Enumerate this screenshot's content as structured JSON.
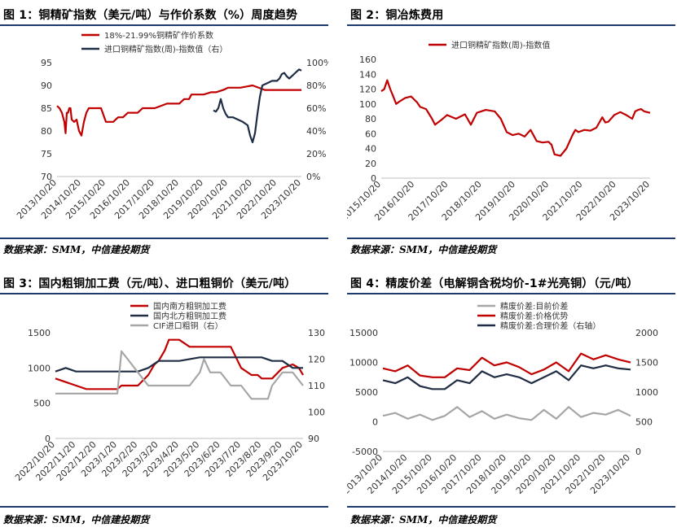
{
  "panels": [
    {
      "title": "图 1：铜精矿指数（美元/吨）与作价系数（%）周度趋势",
      "source": "数据来源：SMM，中信建投期货"
    },
    {
      "title": "图 2：铜冶炼费用",
      "source": "数据来源：SMM，中信建投期货"
    },
    {
      "title": "图 3：国内粗铜加工费（元/吨）、进口粗铜价（美元/吨）",
      "source": "数据来源：SMM，中信建投期货"
    },
    {
      "title": "图 4：精废价差（电解铜含税均价-1#光亮铜）（元/吨）",
      "source": "数据来源：SMM，中信建投期货"
    }
  ],
  "colors": {
    "red": "#c00000",
    "navy": "#1f2d44",
    "gray": "#a6a6a6",
    "rule": "#1f3a6e"
  },
  "chart_data": [
    {
      "type": "line",
      "title": "图 1：铜精矿指数（美元/吨）与作价系数（%）周度趋势",
      "x_labels": [
        "2013/10/20",
        "2014/10/20",
        "2015/10/20",
        "2016/10/20",
        "2017/10/20",
        "2018/10/20",
        "2019/10/20",
        "2020/10/20",
        "2021/10/20",
        "2022/10/20",
        "2023/10/20"
      ],
      "ylim": [
        70,
        95
      ],
      "yticks": [
        70,
        75,
        80,
        85,
        90,
        95
      ],
      "y2lim": [
        0,
        100
      ],
      "y2ticks": [
        "0%",
        "20%",
        "40%",
        "60%",
        "80%",
        "100%"
      ],
      "series": [
        {
          "name": "18%-21.99%铜精矿作价系数",
          "axis": "left",
          "color": "#c00000",
          "x": [
            0,
            0.1,
            0.2,
            0.3,
            0.35,
            0.4,
            0.45,
            0.5,
            0.55,
            0.6,
            0.7,
            0.8,
            0.9,
            1.0,
            1.1,
            1.2,
            1.3,
            1.5,
            1.8,
            2.0,
            2.3,
            2.5,
            2.7,
            2.9,
            3.0,
            3.1,
            3.3,
            3.5,
            4.0,
            4.5,
            5.0,
            5.2,
            5.4,
            5.5,
            5.7,
            6.0,
            6.3,
            6.5,
            6.8,
            7.0,
            7.5,
            8.0,
            8.5,
            9.0,
            9.5,
            10.0
          ],
          "values": [
            85.5,
            85,
            84,
            82,
            79.5,
            84,
            84,
            85,
            85,
            82.5,
            82,
            82.5,
            80,
            79,
            82,
            84,
            85,
            85,
            85,
            82,
            82,
            83,
            83,
            84,
            84,
            84,
            84,
            85,
            85,
            86,
            86,
            87,
            87,
            88,
            88,
            88,
            88.5,
            88.5,
            89,
            89.5,
            89.5,
            90,
            89,
            89,
            89,
            89
          ]
        },
        {
          "name": "进口铜精矿指数(周)-指数值（右）",
          "axis": "right",
          "color": "#1f2d44",
          "x": [
            6.4,
            6.5,
            6.6,
            6.7,
            6.8,
            6.9,
            7.0,
            7.2,
            7.4,
            7.6,
            7.8,
            7.9,
            8.0,
            8.1,
            8.2,
            8.3,
            8.4,
            8.6,
            8.8,
            9.0,
            9.1,
            9.2,
            9.3,
            9.4,
            9.5,
            9.6,
            9.7,
            9.8,
            9.9,
            10.0
          ],
          "values": [
            58,
            57,
            60,
            68,
            60,
            55,
            52,
            52,
            50,
            48,
            45,
            36,
            30,
            38,
            55,
            70,
            80,
            82,
            84,
            84,
            86,
            90,
            91,
            88,
            86,
            88,
            90,
            92,
            94,
            93
          ]
        }
      ]
    },
    {
      "type": "line",
      "title": "图 2：铜冶炼费用",
      "x_labels": [
        "2015/10/20",
        "2016/10/20",
        "2017/10/20",
        "2018/10/20",
        "2019/10/20",
        "2020/10/20",
        "2021/10/20",
        "2022/10/20",
        "2023/10/20"
      ],
      "ylim": [
        0,
        160
      ],
      "yticks": [
        0,
        20,
        40,
        60,
        80,
        100,
        120,
        140,
        160
      ],
      "series": [
        {
          "name": "进口铜精矿指数(周)-指数值",
          "color": "#c00000",
          "x": [
            0,
            0.1,
            0.2,
            0.3,
            0.4,
            0.5,
            0.6,
            0.8,
            1.0,
            1.2,
            1.3,
            1.5,
            1.7,
            1.8,
            2.0,
            2.2,
            2.5,
            2.8,
            3.0,
            3.2,
            3.5,
            3.8,
            4.0,
            4.2,
            4.4,
            4.6,
            4.8,
            5.0,
            5.2,
            5.4,
            5.6,
            5.7,
            5.8,
            6.0,
            6.2,
            6.4,
            6.5,
            6.6,
            6.8,
            7.0,
            7.2,
            7.4,
            7.5,
            7.6,
            7.8,
            8.0,
            8.2,
            8.4,
            8.5,
            8.6,
            8.7,
            8.8,
            9.0
          ],
          "values": [
            117,
            120,
            132,
            120,
            110,
            100,
            103,
            108,
            110,
            102,
            96,
            93,
            80,
            72,
            78,
            85,
            80,
            86,
            72,
            88,
            92,
            90,
            80,
            62,
            58,
            60,
            56,
            65,
            50,
            48,
            49,
            45,
            32,
            30,
            40,
            58,
            65,
            62,
            65,
            64,
            68,
            82,
            75,
            76,
            85,
            89,
            85,
            80,
            90,
            92,
            93,
            90,
            88
          ]
        }
      ]
    },
    {
      "type": "line",
      "title": "图 3：国内粗铜加工费（元/吨）、进口粗铜价（美元/吨）",
      "x_labels": [
        "2022/10/20",
        "2022/11/20",
        "2022/12/20",
        "2023/1/20",
        "2023/2/20",
        "2023/3/20",
        "2023/4/20",
        "2023/5/20",
        "2023/6/20",
        "2023/7/20",
        "2023/8/20",
        "2023/9/20",
        "2023/10/20"
      ],
      "ylim": [
        0,
        1500
      ],
      "yticks": [
        0,
        500,
        1000,
        1500
      ],
      "y2lim": [
        90,
        130
      ],
      "y2ticks": [
        90,
        100,
        110,
        120,
        130
      ],
      "series": [
        {
          "name": "国内南方粗铜加工费",
          "axis": "left",
          "color": "#c00000",
          "x": [
            0,
            0.5,
            1.0,
            1.5,
            2.0,
            2.5,
            3.0,
            3.2,
            3.5,
            4.0,
            4.5,
            4.8,
            5.0,
            5.3,
            5.5,
            6.0,
            6.5,
            7.0,
            7.3,
            7.5,
            8.0,
            8.5,
            9.0,
            9.5,
            9.8,
            10.0,
            10.5,
            11.0,
            11.5,
            11.8,
            12.0
          ],
          "values": [
            850,
            800,
            750,
            700,
            700,
            700,
            700,
            750,
            750,
            750,
            900,
            1050,
            1100,
            1250,
            1400,
            1400,
            1300,
            1300,
            1300,
            1300,
            1300,
            1300,
            1000,
            900,
            900,
            850,
            850,
            1000,
            1050,
            1000,
            900
          ]
        },
        {
          "name": "国内北方粗铜加工费",
          "axis": "left",
          "color": "#1f2d44",
          "x": [
            0,
            0.5,
            1.0,
            2.0,
            3.0,
            3.5,
            4.0,
            4.5,
            5.0,
            6.0,
            7.0,
            8.0,
            9.0,
            10.0,
            10.5,
            11.0,
            11.5,
            12.0
          ],
          "values": [
            950,
            1000,
            950,
            950,
            950,
            950,
            950,
            1000,
            1100,
            1100,
            1150,
            1150,
            1150,
            1150,
            1100,
            1100,
            1000,
            1000
          ]
        },
        {
          "name": "CIF进口粗铜（右）",
          "axis": "right",
          "color": "#a6a6a6",
          "x": [
            0,
            0.5,
            1.0,
            2.0,
            3.0,
            3.2,
            3.5,
            4.0,
            4.5,
            5.0,
            6.0,
            6.5,
            7.0,
            7.2,
            7.5,
            8.0,
            8.5,
            9.0,
            9.5,
            10.0,
            10.3,
            10.5,
            11.0,
            11.5,
            12.0
          ],
          "values": [
            107,
            107,
            107,
            107,
            107,
            123,
            120,
            115,
            110,
            110,
            110,
            110,
            115,
            120,
            115,
            115,
            110,
            110,
            105,
            105,
            105,
            110,
            115,
            115,
            110
          ]
        }
      ]
    },
    {
      "type": "line",
      "title": "图 4：精废价差（电解铜含税均价-1#光亮铜）（元/吨）",
      "x_labels": [
        "2013/10/20",
        "2014/10/20",
        "2015/10/20",
        "2016/10/20",
        "2017/10/20",
        "2018/10/20",
        "2019/10/20",
        "2020/10/20",
        "2021/10/20",
        "2022/10/20",
        "2023/10/20"
      ],
      "ylim": [
        -5000,
        15000
      ],
      "yticks": [
        -5000,
        0,
        5000,
        10000,
        15000
      ],
      "y2lim": [
        0,
        2000
      ],
      "y2ticks": [
        0,
        500,
        1000,
        1500,
        2000
      ],
      "series": [
        {
          "name": "精废价差:目前价差",
          "axis": "left",
          "color": "#a6a6a6",
          "x": [
            0,
            0.5,
            1,
            1.5,
            2,
            2.5,
            3,
            3.5,
            4,
            4.5,
            5,
            5.5,
            6,
            6.5,
            7,
            7.5,
            8,
            8.5,
            9,
            9.5,
            10
          ],
          "values": [
            1000,
            1500,
            500,
            1200,
            300,
            1000,
            2500,
            800,
            1800,
            500,
            1200,
            600,
            300,
            2000,
            500,
            2500,
            800,
            1500,
            1200,
            2000,
            1000
          ]
        },
        {
          "name": "精废价差:价格优势",
          "axis": "left",
          "color": "#c00000",
          "x": [
            0,
            0.5,
            1,
            1.5,
            2,
            2.5,
            3,
            3.5,
            4,
            4.5,
            5,
            5.5,
            6,
            6.5,
            7,
            7.5,
            8,
            8.5,
            9,
            9.5,
            10
          ],
          "values": [
            9000,
            8500,
            9500,
            7800,
            7500,
            7500,
            9000,
            8700,
            10800,
            9500,
            10000,
            9200,
            8000,
            8800,
            10000,
            8500,
            11500,
            10500,
            11200,
            10500,
            10000
          ]
        },
        {
          "name": "精废价差:合理价差（右轴）",
          "axis": "right",
          "color": "#1f2d44",
          "x": [
            0,
            0.5,
            1,
            1.5,
            2,
            2.5,
            3,
            3.5,
            4,
            4.5,
            5,
            5.5,
            6,
            6.5,
            7,
            7.5,
            8,
            8.5,
            9,
            9.5,
            10
          ],
          "values": [
            1200,
            1150,
            1250,
            1100,
            1050,
            1050,
            1200,
            1150,
            1350,
            1250,
            1300,
            1250,
            1150,
            1250,
            1350,
            1200,
            1450,
            1400,
            1450,
            1400,
            1380
          ]
        }
      ]
    }
  ]
}
